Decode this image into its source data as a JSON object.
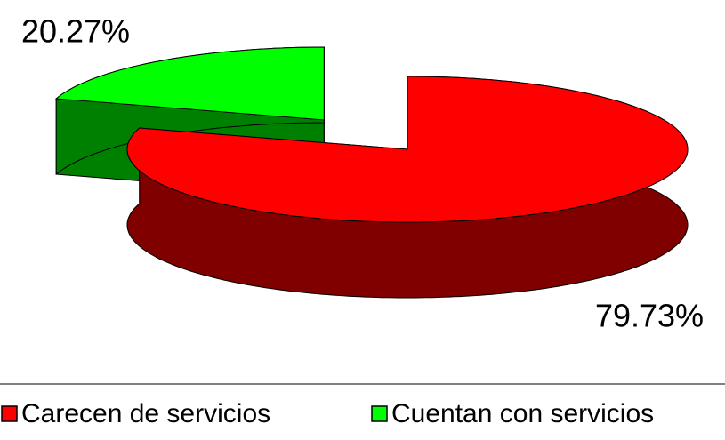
{
  "chart_data": {
    "type": "pie3d",
    "categories": [
      "Carecen de servicios",
      "Cuentan con servicios"
    ],
    "values": [
      79.73,
      20.27
    ],
    "value_labels": [
      "79.73%",
      "20.27%"
    ],
    "colors": [
      "#ff0000",
      "#00ff00"
    ],
    "side_colors": [
      "#800000",
      "#008000"
    ],
    "exploded": [
      false,
      true
    ],
    "legend": "bottom"
  }
}
